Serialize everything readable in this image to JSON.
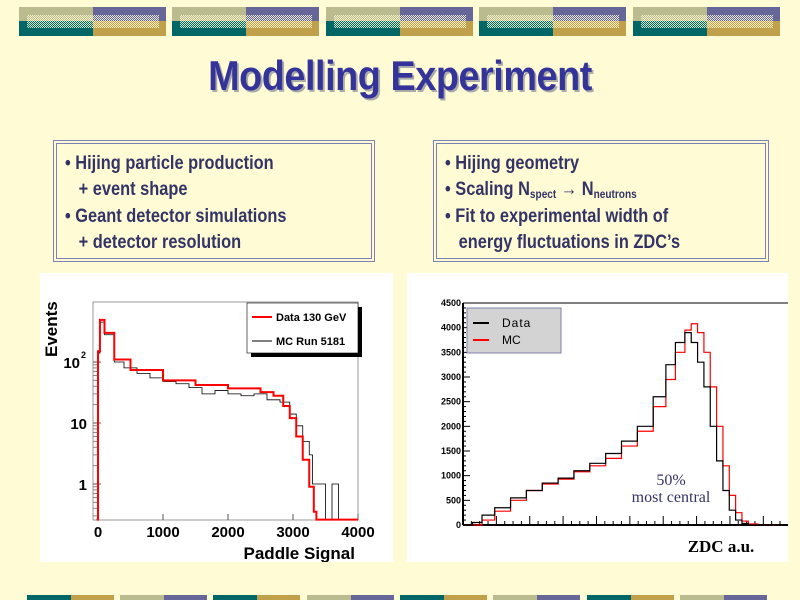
{
  "slide": {
    "title": "Modelling Experiment",
    "colors": {
      "background": "#fffcd5",
      "title": "#333399",
      "text": "#333366",
      "teal": "#006666",
      "gold": "#c0a04a",
      "olive": "#bbbb90",
      "purple": "#666699",
      "data_red": "#ff0000"
    }
  },
  "left_box": {
    "lines": [
      "• Hijing particle production",
      "   + event shape",
      "• Geant detector simulations",
      "   + detector resolution"
    ]
  },
  "right_box": {
    "lines": [
      {
        "text": "• Hijing geometry"
      },
      {
        "pre": "• Scaling N",
        "sub1": "spect",
        "arrow": " → N",
        "sub2": "neutrons"
      },
      {
        "text": "• Fit to experimental width of"
      },
      {
        "text": "   energy fluctuations in ZDC’s"
      }
    ]
  },
  "chart_data": [
    {
      "type": "line",
      "xlabel": "Paddle Signal",
      "ylabel": "Events",
      "yscale": "log",
      "xlim": [
        -80,
        4000
      ],
      "ylim": [
        0.26,
        1000
      ],
      "xticks": [
        "0",
        "1000",
        "2000",
        "3000",
        "4000"
      ],
      "yticks": [
        {
          "value": 1,
          "label": "1"
        },
        {
          "value": 10,
          "label": "10"
        },
        {
          "value": 100,
          "label": "10",
          "sup": "2"
        }
      ],
      "legend_position": "top-right",
      "series": [
        {
          "name": "Data 130 GeV",
          "color": "#ff0000",
          "x": [
            -20,
            0,
            30,
            100,
            250,
            500,
            1000,
            1500,
            2000,
            2500,
            2700,
            2850,
            2950,
            3050,
            3150,
            3250,
            3320,
            3360,
            4000
          ],
          "y": [
            0.26,
            150,
            490,
            300,
            110,
            74,
            50,
            42,
            37,
            32,
            28,
            19,
            12,
            6,
            2.5,
            0.9,
            0.35,
            0.26,
            0.26
          ]
        },
        {
          "name": "MC Run 5181",
          "color": "#000000",
          "x": [
            -20,
            0,
            30,
            100,
            250,
            400,
            600,
            800,
            1000,
            1200,
            1400,
            1600,
            1800,
            2000,
            2200,
            2400,
            2600,
            2800,
            2950,
            3050,
            3150,
            3250,
            3300,
            3400,
            3500,
            3600,
            3700,
            3800,
            4000
          ],
          "y": [
            0.26,
            140,
            450,
            280,
            100,
            80,
            65,
            55,
            48,
            44,
            38,
            30,
            34,
            30,
            28,
            30,
            24,
            22,
            14,
            9,
            5,
            3,
            1,
            1,
            0.26,
            1,
            0.26,
            0.26,
            0.26
          ]
        }
      ]
    },
    {
      "type": "line",
      "xlabel": "ZDC a.u.",
      "ylabel": "",
      "xlim": [
        0,
        100
      ],
      "ylim": [
        0,
        4500
      ],
      "yticks": [
        "0",
        "500",
        "1000",
        "1500",
        "2000",
        "2500",
        "3000",
        "3500",
        "4000",
        "4500"
      ],
      "legend_position": "top-left",
      "annotation": [
        "50%",
        "most central"
      ],
      "series": [
        {
          "name": "Data",
          "color": "#000000",
          "x": [
            0,
            3,
            6,
            10,
            15,
            20,
            25,
            30,
            35,
            40,
            45,
            50,
            55,
            60,
            64,
            67,
            70,
            72,
            74,
            76,
            78,
            80,
            82,
            84,
            86,
            88,
            90,
            100
          ],
          "y": [
            0,
            50,
            200,
            350,
            550,
            700,
            850,
            950,
            1100,
            1250,
            1450,
            1700,
            2000,
            2600,
            3250,
            3700,
            3900,
            3700,
            3300,
            2800,
            2000,
            1300,
            700,
            300,
            100,
            30,
            0,
            0
          ]
        },
        {
          "name": "MC",
          "color": "#ff0000",
          "x": [
            0,
            3,
            6,
            10,
            15,
            20,
            25,
            30,
            35,
            40,
            45,
            50,
            55,
            60,
            64,
            67,
            70,
            72,
            74,
            76,
            78,
            80,
            82,
            84,
            86,
            88,
            90,
            93,
            100
          ],
          "y": [
            0,
            0,
            100,
            280,
            500,
            700,
            830,
            930,
            1080,
            1200,
            1350,
            1600,
            1900,
            2400,
            2950,
            3500,
            3950,
            4080,
            3900,
            3500,
            2800,
            2000,
            1200,
            600,
            250,
            80,
            20,
            0,
            0
          ]
        }
      ]
    }
  ]
}
